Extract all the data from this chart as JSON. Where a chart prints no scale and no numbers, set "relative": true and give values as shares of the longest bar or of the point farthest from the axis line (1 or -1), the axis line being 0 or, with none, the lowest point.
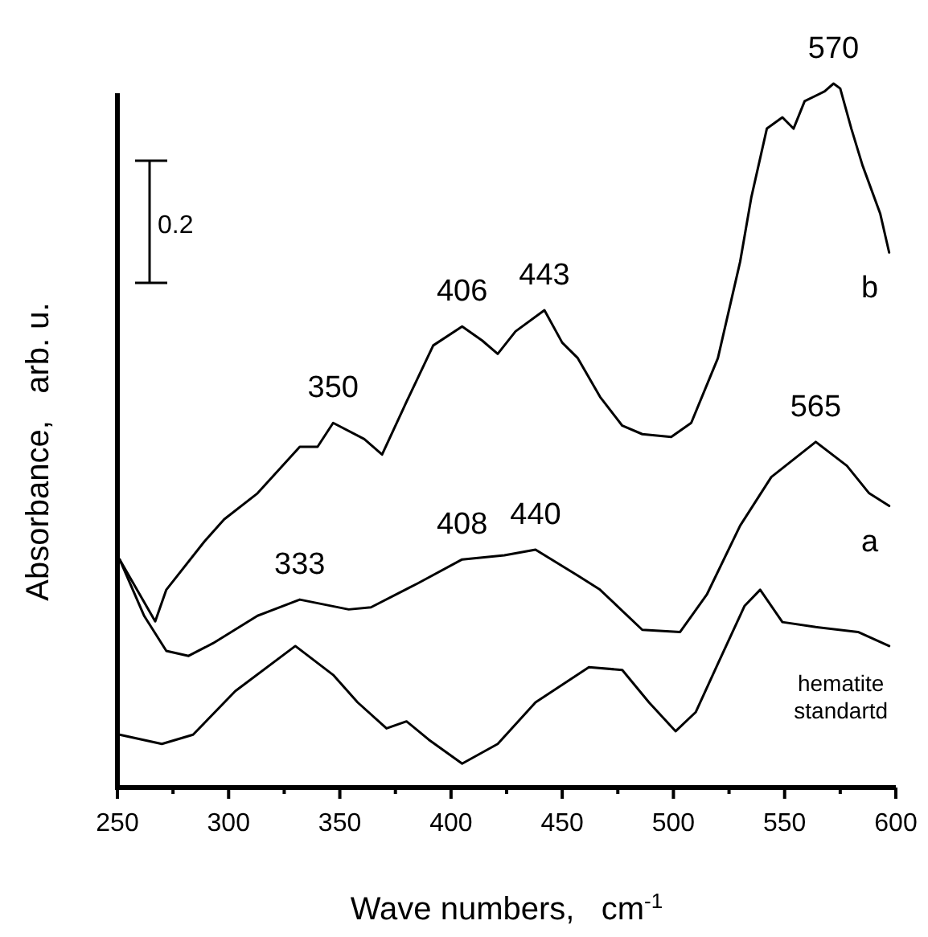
{
  "chart_data": {
    "type": "line",
    "relative": true,
    "xlabel": "Wave numbers,   cm$^{-1}$",
    "ylabel": "Absorbance,   arb. u.",
    "xlim": [
      250,
      600
    ],
    "xticks": [
      250,
      {
        "value": 275,
        "label": null
      },
      300,
      {
        "value": 325,
        "label": null
      },
      350,
      {
        "value": 375,
        "label": null
      },
      400,
      {
        "value": 425,
        "label": null
      },
      450,
      {
        "value": 475,
        "label": null
      },
      500,
      {
        "value": 525,
        "label": null
      },
      550,
      {
        "value": 575,
        "label": null
      },
      600
    ],
    "marker": "none",
    "line_style": "solid",
    "grid": false,
    "series": [
      {
        "name": "b",
        "color": "#000000",
        "x": [
          251,
          267,
          272,
          289,
          298,
          313,
          332,
          340,
          347,
          361,
          369,
          380,
          392,
          405,
          414,
          421,
          429,
          442,
          450,
          457,
          467,
          477,
          486,
          499,
          508,
          520,
          530,
          535,
          542,
          549,
          554,
          559,
          568,
          572,
          575,
          580,
          585,
          593,
          597
        ],
        "values": [
          0.324,
          0.236,
          0.281,
          0.349,
          0.381,
          0.418,
          0.484,
          0.484,
          0.518,
          0.495,
          0.473,
          0.548,
          0.628,
          0.655,
          0.635,
          0.616,
          0.648,
          0.678,
          0.632,
          0.61,
          0.555,
          0.514,
          0.502,
          0.498,
          0.518,
          0.61,
          0.747,
          0.838,
          0.936,
          0.952,
          0.936,
          0.975,
          0.989,
          1.0,
          0.993,
          0.936,
          0.884,
          0.815,
          0.76
        ]
      },
      {
        "name": "a",
        "color": "#000000",
        "x": [
          251,
          262,
          272,
          282,
          293,
          313,
          332,
          354,
          364,
          385,
          405,
          424,
          438,
          457,
          467,
          486,
          503,
          515,
          530,
          544,
          564,
          578,
          588,
          597
        ],
        "values": [
          0.324,
          0.244,
          0.194,
          0.187,
          0.205,
          0.244,
          0.267,
          0.253,
          0.256,
          0.29,
          0.324,
          0.33,
          0.338,
          0.301,
          0.281,
          0.224,
          0.221,
          0.274,
          0.372,
          0.441,
          0.491,
          0.457,
          0.418,
          0.4
        ]
      },
      {
        "name": "hematite standartd",
        "color": "#000000",
        "x": [
          251,
          270,
          284,
          303,
          330,
          347,
          358,
          371,
          380,
          390,
          405,
          421,
          438,
          462,
          477,
          489,
          501,
          510,
          520,
          532,
          539,
          549,
          564,
          583,
          597
        ],
        "values": [
          0.075,
          0.062,
          0.075,
          0.137,
          0.201,
          0.16,
          0.121,
          0.084,
          0.094,
          0.068,
          0.034,
          0.062,
          0.121,
          0.171,
          0.167,
          0.121,
          0.08,
          0.107,
          0.176,
          0.258,
          0.281,
          0.235,
          0.228,
          0.221,
          0.201
        ]
      }
    ],
    "annotations": [
      {
        "text": "350",
        "x": 347,
        "y": 0.518
      },
      {
        "text": "406",
        "x": 405,
        "y": 0.655
      },
      {
        "text": "443",
        "x": 442,
        "y": 0.678
      },
      {
        "text": "570",
        "x": 572,
        "y": 1.0
      },
      {
        "text": "333",
        "x": 332,
        "y": 0.267
      },
      {
        "text": "408",
        "x": 405,
        "y": 0.324
      },
      {
        "text": "440",
        "x": 438,
        "y": 0.338
      },
      {
        "text": "565",
        "x": 564,
        "y": 0.491
      },
      "0.2"
    ]
  }
}
